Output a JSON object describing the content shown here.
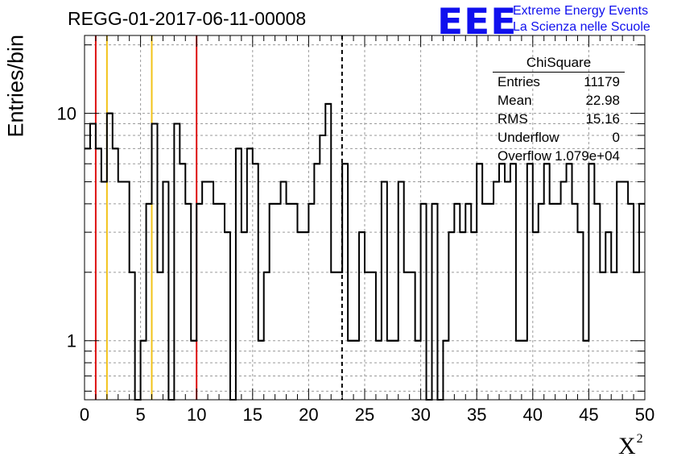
{
  "header": {
    "run_title": "REGG-01-2017-06-11-00008",
    "logo_letters": "EEE",
    "logo_line1": "Extreme Energy Events",
    "logo_line2": "La Scienza nelle Scuole",
    "logo_color": "#1010ee"
  },
  "stats_box": {
    "title": "ChiSquare",
    "rows": [
      {
        "label": "Entries",
        "value": "11179"
      },
      {
        "label": "Mean",
        "value": "22.98"
      },
      {
        "label": "RMS",
        "value": "15.16"
      },
      {
        "label": "Underflow",
        "value": "0"
      },
      {
        "label": "Overflow",
        "value": "1.079e+04"
      }
    ]
  },
  "chart_data": {
    "type": "histogram",
    "title": "REGG-01-2017-06-11-00008",
    "xlabel": "X",
    "xlabel_superscript": "2",
    "ylabel": "Entries/bin",
    "xlim": [
      0,
      50
    ],
    "ylim": [
      0.55,
      22
    ],
    "yscale": "log",
    "grid": true,
    "bin_width": 0.5,
    "x_ticks": [
      "0",
      "5",
      "10",
      "15",
      "20",
      "25",
      "30",
      "35",
      "40",
      "45",
      "50"
    ],
    "y_tick_labels": [
      "1",
      "10"
    ],
    "counts": [
      7,
      9,
      7,
      5,
      10,
      7,
      5,
      5,
      2,
      0,
      1,
      4,
      9,
      2,
      5,
      0,
      9,
      6,
      4,
      1,
      4,
      5,
      5,
      4,
      4,
      3,
      0,
      7,
      3,
      7,
      6,
      1,
      2,
      4,
      4,
      5,
      4,
      4,
      3,
      3,
      4,
      6,
      8,
      11,
      2,
      2,
      6,
      1,
      1,
      3,
      2,
      2,
      1,
      5,
      1,
      1,
      5,
      2,
      2,
      1,
      4,
      0,
      4,
      0,
      1,
      3,
      4,
      3,
      4,
      3,
      6,
      4,
      4,
      5,
      6,
      5,
      6,
      1,
      1,
      6,
      3,
      4,
      6,
      4,
      4,
      5,
      6,
      4,
      3,
      1,
      6,
      4,
      2,
      3,
      2,
      5,
      5,
      4,
      2,
      4
    ],
    "vertical_lines": [
      {
        "x": 1,
        "color": "#dd1111",
        "style": "solid"
      },
      {
        "x": 2,
        "color": "#f2c218",
        "style": "solid"
      },
      {
        "x": 6,
        "color": "#f2c218",
        "style": "solid"
      },
      {
        "x": 10,
        "color": "#dd1111",
        "style": "solid"
      },
      {
        "x": 22.98,
        "color": "#000000",
        "style": "dashed"
      }
    ],
    "legend": "stats box top-right"
  }
}
